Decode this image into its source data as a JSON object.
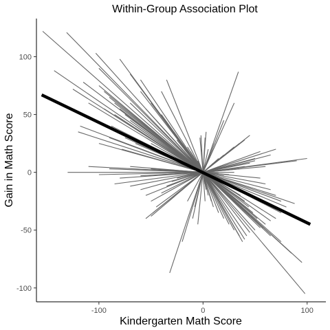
{
  "chart_data": {
    "type": "line",
    "title": "Within-Group Association Plot",
    "xlabel": "Kindergarten Math Score",
    "ylabel": "Gain in Math Score",
    "xlim": [
      -160,
      118
    ],
    "ylim": [
      -112,
      133
    ],
    "x_ticks": [
      -100,
      0,
      100
    ],
    "x_tick_labels": [
      "-100",
      "0",
      "100"
    ],
    "y_ticks": [
      -100,
      -50,
      0,
      50,
      100
    ],
    "y_tick_labels": [
      "-100",
      "-50",
      "0",
      "50",
      "100"
    ],
    "grid": false,
    "legend": "none",
    "segment_color": "#666666",
    "fit_color": "#000000",
    "fit_line": {
      "x": [
        -155,
        103
      ],
      "y": [
        67,
        -45
      ]
    },
    "segments": [
      [
        -154,
        122,
        0,
        0
      ],
      [
        -131,
        121,
        0,
        0
      ],
      [
        -143,
        88,
        0,
        0
      ],
      [
        -103,
        103,
        0,
        0
      ],
      [
        -100,
        90,
        0,
        0
      ],
      [
        -80,
        98,
        0,
        0
      ],
      [
        -125,
        72,
        0,
        0
      ],
      [
        -115,
        78,
        0,
        0
      ],
      [
        -100,
        75,
        0,
        0
      ],
      [
        -95,
        70,
        0,
        0
      ],
      [
        -90,
        65,
        0,
        0
      ],
      [
        -85,
        60,
        0,
        0
      ],
      [
        -80,
        55,
        0,
        0
      ],
      [
        -75,
        50,
        0,
        0
      ],
      [
        -70,
        45,
        0,
        0
      ],
      [
        -65,
        40,
        0,
        0
      ],
      [
        -60,
        35,
        0,
        0
      ],
      [
        -55,
        30,
        0,
        0
      ],
      [
        -50,
        25,
        0,
        0
      ],
      [
        -45,
        20,
        0,
        0
      ],
      [
        -40,
        18,
        0,
        0
      ],
      [
        -35,
        15,
        0,
        0
      ],
      [
        -30,
        12,
        0,
        0
      ],
      [
        -25,
        10,
        0,
        0
      ],
      [
        -110,
        60,
        0,
        0
      ],
      [
        -105,
        45,
        0,
        0
      ],
      [
        -120,
        35,
        0,
        0
      ],
      [
        -118,
        40,
        0,
        0
      ],
      [
        -100,
        25,
        0,
        0
      ],
      [
        -90,
        30,
        0,
        0
      ],
      [
        -85,
        50,
        0,
        0
      ],
      [
        -78,
        20,
        0,
        0
      ],
      [
        -70,
        60,
        0,
        0
      ],
      [
        -60,
        70,
        0,
        0
      ],
      [
        -55,
        55,
        0,
        0
      ],
      [
        -50,
        60,
        0,
        0
      ],
      [
        -45,
        45,
        0,
        0
      ],
      [
        -40,
        50,
        0,
        0
      ],
      [
        -38,
        38,
        0,
        0
      ],
      [
        -35,
        42,
        0,
        0
      ],
      [
        -30,
        30,
        0,
        0
      ],
      [
        -28,
        35,
        0,
        0
      ],
      [
        -25,
        28,
        0,
        0
      ],
      [
        -20,
        25,
        0,
        0
      ],
      [
        -18,
        20,
        0,
        0
      ],
      [
        -15,
        22,
        0,
        0
      ],
      [
        -12,
        18,
        0,
        0
      ],
      [
        -10,
        15,
        0,
        0
      ],
      [
        -8,
        12,
        0,
        0
      ],
      [
        -5,
        10,
        0,
        0
      ],
      [
        -3,
        30,
        0,
        0
      ],
      [
        -2,
        32,
        0,
        0
      ],
      [
        -60,
        80,
        0,
        0
      ],
      [
        -35,
        80,
        0,
        0
      ],
      [
        -40,
        70,
        0,
        0
      ],
      [
        -70,
        85,
        0,
        0
      ],
      [
        -88,
        40,
        0,
        0
      ],
      [
        -95,
        55,
        0,
        0
      ],
      [
        -75,
        30,
        0,
        0
      ],
      [
        -65,
        25,
        0,
        0
      ],
      [
        -130,
        0,
        0,
        0
      ],
      [
        -110,
        5,
        0,
        0
      ],
      [
        -100,
        -2,
        0,
        0
      ],
      [
        -90,
        3,
        0,
        0
      ],
      [
        -80,
        -5,
        0,
        0
      ],
      [
        -70,
        5,
        0,
        0
      ],
      [
        -60,
        -3,
        0,
        0
      ],
      [
        -50,
        3,
        0,
        0
      ],
      [
        -40,
        -2,
        0,
        0
      ],
      [
        -30,
        2,
        0,
        0
      ],
      [
        -85,
        -10,
        0,
        0
      ],
      [
        -70,
        -12,
        0,
        0
      ],
      [
        -60,
        -15,
        0,
        0
      ],
      [
        -55,
        -20,
        0,
        0
      ],
      [
        -50,
        -25,
        0,
        0
      ],
      [
        -45,
        -30,
        0,
        0
      ],
      [
        -40,
        -18,
        0,
        0
      ],
      [
        -35,
        -12,
        0,
        0
      ],
      [
        -30,
        -8,
        0,
        0
      ],
      [
        -25,
        -5,
        0,
        0
      ],
      [
        -55,
        -40,
        0,
        0
      ],
      [
        -50,
        -38,
        0,
        0
      ],
      [
        -48,
        -35,
        0,
        0
      ],
      [
        -32,
        -87,
        0,
        0
      ],
      [
        -20,
        -60,
        0,
        0
      ],
      [
        -10,
        -40,
        0,
        0
      ],
      [
        -5,
        -45,
        0,
        0
      ],
      [
        -8,
        -30,
        0,
        0
      ],
      [
        -15,
        -25,
        0,
        0
      ],
      [
        34,
        87,
        0,
        0
      ],
      [
        30,
        60,
        0,
        0
      ],
      [
        20,
        45,
        0,
        0
      ],
      [
        15,
        30,
        0,
        0
      ],
      [
        10,
        25,
        0,
        0
      ],
      [
        5,
        20,
        0,
        0
      ],
      [
        3,
        35,
        0,
        0
      ],
      [
        2,
        30,
        0,
        0
      ],
      [
        45,
        32,
        0,
        0
      ],
      [
        40,
        28,
        0,
        0
      ],
      [
        35,
        25,
        0,
        0
      ],
      [
        30,
        22,
        0,
        0
      ],
      [
        25,
        18,
        0,
        0
      ],
      [
        20,
        15,
        0,
        0
      ],
      [
        15,
        12,
        0,
        0
      ],
      [
        10,
        8,
        0,
        0
      ],
      [
        50,
        10,
        0,
        0
      ],
      [
        45,
        8,
        0,
        0
      ],
      [
        40,
        5,
        0,
        0
      ],
      [
        35,
        3,
        0,
        0
      ],
      [
        30,
        0,
        0,
        0
      ],
      [
        25,
        -2,
        0,
        0
      ],
      [
        20,
        -3,
        0,
        0
      ],
      [
        15,
        -1,
        0,
        0
      ],
      [
        100,
        12,
        0,
        0
      ],
      [
        90,
        10,
        0,
        0
      ],
      [
        60,
        5,
        0,
        0
      ],
      [
        55,
        -5,
        0,
        0
      ],
      [
        88,
        -27,
        0,
        0
      ],
      [
        80,
        -30,
        0,
        0
      ],
      [
        75,
        -35,
        0,
        0
      ],
      [
        70,
        -40,
        0,
        0
      ],
      [
        65,
        -42,
        0,
        0
      ],
      [
        60,
        -45,
        0,
        0
      ],
      [
        55,
        -48,
        0,
        0
      ],
      [
        50,
        -50,
        0,
        0
      ],
      [
        45,
        -52,
        0,
        0
      ],
      [
        42,
        -55,
        0,
        0
      ],
      [
        40,
        -58,
        0,
        0
      ],
      [
        38,
        -60,
        0,
        0
      ],
      [
        35,
        -55,
        0,
        0
      ],
      [
        30,
        -50,
        0,
        0
      ],
      [
        25,
        -45,
        0,
        0
      ],
      [
        20,
        -40,
        0,
        0
      ],
      [
        15,
        -35,
        0,
        0
      ],
      [
        10,
        -30,
        0,
        0
      ],
      [
        8,
        -25,
        0,
        0
      ],
      [
        5,
        -20,
        0,
        0
      ],
      [
        98,
        -105,
        0,
        0
      ],
      [
        95,
        -78,
        0,
        0
      ],
      [
        85,
        -70,
        0,
        0
      ],
      [
        75,
        -60,
        0,
        0
      ],
      [
        65,
        -55,
        0,
        0
      ],
      [
        58,
        -48,
        0,
        0
      ],
      [
        52,
        -40,
        0,
        0
      ],
      [
        48,
        -35,
        0,
        0
      ],
      [
        44,
        -30,
        0,
        0
      ],
      [
        40,
        -25,
        0,
        0
      ],
      [
        36,
        -20,
        0,
        0
      ],
      [
        32,
        -15,
        0,
        0
      ],
      [
        28,
        -12,
        0,
        0
      ],
      [
        24,
        -10,
        0,
        0
      ],
      [
        20,
        -8,
        0,
        0
      ],
      [
        16,
        -6,
        0,
        0
      ],
      [
        12,
        -4,
        0,
        0
      ],
      [
        8,
        -3,
        0,
        0
      ],
      [
        4,
        -2,
        0,
        0
      ],
      [
        2,
        -25,
        0,
        0
      ],
      [
        3,
        -15,
        0,
        0
      ],
      [
        1,
        -10,
        0,
        0
      ],
      [
        70,
        20,
        0,
        0
      ],
      [
        65,
        15,
        0,
        0
      ],
      [
        55,
        18,
        0,
        0
      ],
      [
        50,
        12,
        0,
        0
      ],
      [
        60,
        -10,
        0,
        0
      ],
      [
        65,
        -15,
        0,
        0
      ],
      [
        70,
        -20,
        0,
        0
      ],
      [
        75,
        -25,
        0,
        0
      ]
    ]
  }
}
